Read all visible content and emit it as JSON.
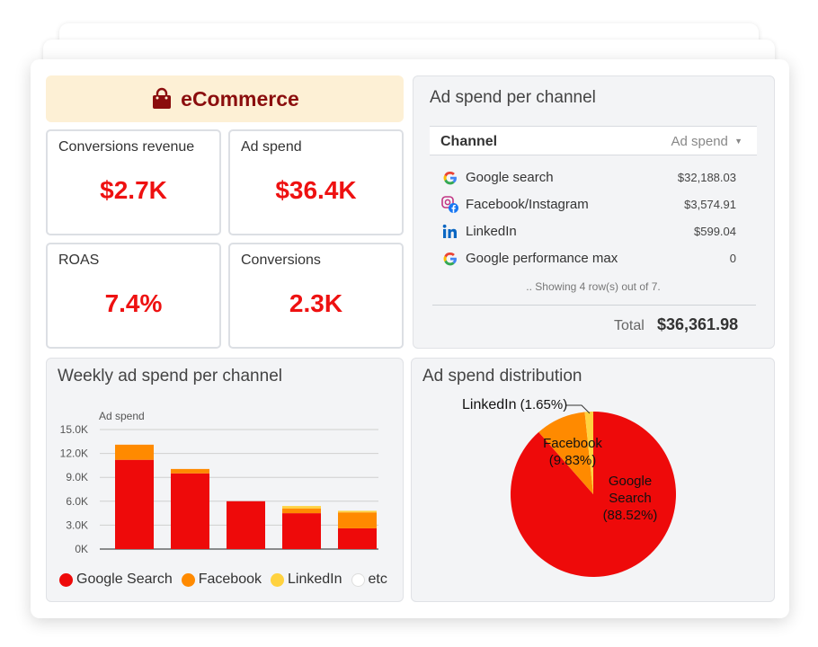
{
  "header": {
    "title": "eCommerce",
    "icon": "shopping-bag-icon",
    "bg_color": "#fdf0d5",
    "text_color": "#8b0e0e"
  },
  "kpis": [
    {
      "label": "Conversions revenue",
      "value": "$2.7K"
    },
    {
      "label": "Ad spend",
      "value": "$36.4K"
    },
    {
      "label": "ROAS",
      "value": "7.4%"
    },
    {
      "label": "Conversions",
      "value": "2.3K"
    }
  ],
  "ad_spend_table": {
    "title": "Ad spend per channel",
    "col_channel": "Channel",
    "col_spend": "Ad spend",
    "sort_icon": "caret-down-icon",
    "rows": [
      {
        "icon": "google-icon",
        "channel": "Google search",
        "spend": "$32,188.03"
      },
      {
        "icon": "instagram-facebook-icon",
        "channel": "Facebook/Instagram",
        "spend": "$3,574.91"
      },
      {
        "icon": "linkedin-icon",
        "channel": "LinkedIn",
        "spend": "$599.04"
      },
      {
        "icon": "google-icon",
        "channel": "Google performance max",
        "spend": "0"
      }
    ],
    "showing_text": ".. Showing 4 row(s) out of 7.",
    "total_label": "Total",
    "total_value": "$36,361.98"
  },
  "weekly_chart": {
    "title": "Weekly ad spend per channel",
    "legend": [
      {
        "name": "Google Search",
        "color": "#ee0a0a"
      },
      {
        "name": "Facebook",
        "color": "#ff8a00"
      },
      {
        "name": "LinkedIn",
        "color": "#ffd23f"
      },
      {
        "name": "etc",
        "color": "#ffffff"
      }
    ]
  },
  "distribution_chart": {
    "title": "Ad spend distribution",
    "labels": {
      "linkedin_name": "LinkedIn",
      "linkedin_pct": "(1.65%)",
      "facebook_name": "Facebook",
      "facebook_pct": "(9.83%)",
      "google_name_1": "Google",
      "google_name_2": "Search",
      "google_pct": "(88.52%)"
    }
  },
  "chart_data": [
    {
      "type": "bar",
      "title": "Weekly ad spend per channel",
      "ylabel": "Ad spend",
      "ylim": [
        0,
        15000
      ],
      "yticks": [
        "0K",
        "3.0K",
        "6.0K",
        "9.0K",
        "12.0K",
        "15.0K"
      ],
      "ytick_values": [
        0,
        3000,
        6000,
        9000,
        12000,
        15000
      ],
      "stacked": true,
      "grid": true,
      "categories": [
        "",
        "",
        "",
        "",
        ""
      ],
      "series": [
        {
          "name": "Google Search",
          "color": "#ee0a0a",
          "values": [
            11200,
            9500,
            6000,
            4500,
            2600
          ]
        },
        {
          "name": "Facebook",
          "color": "#ff8a00",
          "values": [
            1900,
            550,
            0,
            600,
            2000
          ]
        },
        {
          "name": "LinkedIn",
          "color": "#ffd23f",
          "values": [
            0,
            0,
            0,
            300,
            200
          ]
        }
      ]
    },
    {
      "type": "pie",
      "title": "Ad spend distribution",
      "categories": [
        "Google Search",
        "Facebook",
        "LinkedIn"
      ],
      "values": [
        88.52,
        9.83,
        1.65
      ],
      "colors": [
        "#ee0a0a",
        "#ff8a00",
        "#ffd23f"
      ]
    }
  ]
}
